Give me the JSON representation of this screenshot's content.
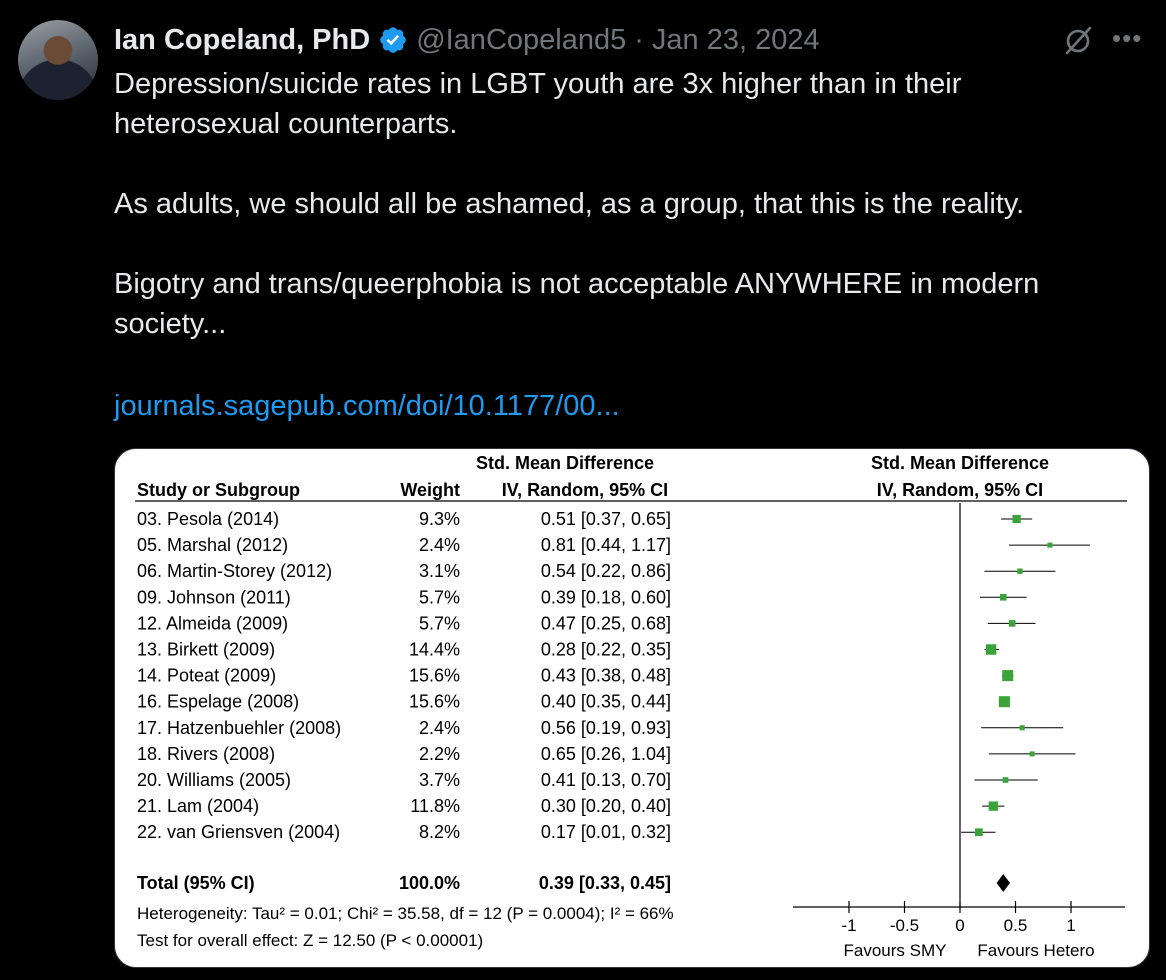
{
  "author": {
    "name": "Ian Copeland, PhD",
    "handle": "@IanCopeland5",
    "separator": "·",
    "date": "Jan 23, 2024"
  },
  "tweet": {
    "paragraphs": [
      "Depression/suicide rates in LGBT youth are 3x higher than in their\nheterosexual counterparts.",
      "As adults, we should all be ashamed, as a group, that this is the reality.",
      "Bigotry and trans/queerphobia is not acceptable ANYWHERE in modern\nsociety..."
    ],
    "link": "journals.sagepub.com/doi/10.1177/00..."
  },
  "colors": {
    "link": "#1d9bf0",
    "verified": "#1d9bf0",
    "marker": "#3aa33a"
  },
  "icons": {
    "verified": "verified-badge-icon",
    "grok": "grok-icon",
    "more": "more-options-icon"
  },
  "chart_data": {
    "type": "forest",
    "headers": {
      "study": "Study or Subgroup",
      "weight": "Weight",
      "effect_top": "Std. Mean Difference",
      "effect_bottom": "IV, Random, 95% CI",
      "plot_top": "Std. Mean Difference",
      "plot_bottom": "IV, Random, 95% CI"
    },
    "studies": [
      {
        "name": "03. Pesola (2014)",
        "weight": "9.3%",
        "ci_text": "0.51 [0.37, 0.65]",
        "est": 0.51,
        "lo": 0.37,
        "hi": 0.65
      },
      {
        "name": "05. Marshal (2012)",
        "weight": "2.4%",
        "ci_text": "0.81 [0.44, 1.17]",
        "est": 0.81,
        "lo": 0.44,
        "hi": 1.17
      },
      {
        "name": "06. Martin-Storey (2012)",
        "weight": "3.1%",
        "ci_text": "0.54 [0.22, 0.86]",
        "est": 0.54,
        "lo": 0.22,
        "hi": 0.86
      },
      {
        "name": "09. Johnson (2011)",
        "weight": "5.7%",
        "ci_text": "0.39 [0.18, 0.60]",
        "est": 0.39,
        "lo": 0.18,
        "hi": 0.6
      },
      {
        "name": "12. Almeida (2009)",
        "weight": "5.7%",
        "ci_text": "0.47 [0.25, 0.68]",
        "est": 0.47,
        "lo": 0.25,
        "hi": 0.68
      },
      {
        "name": "13. Birkett (2009)",
        "weight": "14.4%",
        "ci_text": "0.28 [0.22, 0.35]",
        "est": 0.28,
        "lo": 0.22,
        "hi": 0.35
      },
      {
        "name": "14. Poteat (2009)",
        "weight": "15.6%",
        "ci_text": "0.43 [0.38, 0.48]",
        "est": 0.43,
        "lo": 0.38,
        "hi": 0.48
      },
      {
        "name": "16. Espelage (2008)",
        "weight": "15.6%",
        "ci_text": "0.40 [0.35, 0.44]",
        "est": 0.4,
        "lo": 0.35,
        "hi": 0.44
      },
      {
        "name": "17. Hatzenbuehler (2008)",
        "weight": "2.4%",
        "ci_text": "0.56 [0.19, 0.93]",
        "est": 0.56,
        "lo": 0.19,
        "hi": 0.93
      },
      {
        "name": "18. Rivers (2008)",
        "weight": "2.2%",
        "ci_text": "0.65 [0.26, 1.04]",
        "est": 0.65,
        "lo": 0.26,
        "hi": 1.04
      },
      {
        "name": "20. Williams (2005)",
        "weight": "3.7%",
        "ci_text": "0.41 [0.13, 0.70]",
        "est": 0.41,
        "lo": 0.13,
        "hi": 0.7
      },
      {
        "name": "21. Lam (2004)",
        "weight": "11.8%",
        "ci_text": "0.30 [0.20, 0.40]",
        "est": 0.3,
        "lo": 0.2,
        "hi": 0.4
      },
      {
        "name": "22. van Griensven (2004)",
        "weight": "8.2%",
        "ci_text": "0.17 [0.01, 0.32]",
        "est": 0.17,
        "lo": 0.01,
        "hi": 0.32
      }
    ],
    "total": {
      "name": "Total (95% CI)",
      "weight": "100.0%",
      "ci_text": "0.39 [0.33, 0.45]",
      "est": 0.39,
      "lo": 0.33,
      "hi": 0.45
    },
    "heterogeneity": "Heterogeneity: Tau² = 0.01; Chi² = 35.58, df = 12 (P = 0.0004); I² = 66%",
    "overall_test": "Test for overall effect: Z = 12.50 (P < 0.00001)",
    "x_ticks": [
      -1,
      -0.5,
      0,
      0.5,
      1
    ],
    "x_tick_labels": [
      "-1",
      "-0.5",
      "0",
      "0.5",
      "1"
    ],
    "xlim": [
      -1,
      1
    ],
    "favours_left": "Favours SMY",
    "favours_right": "Favours Hetero"
  }
}
